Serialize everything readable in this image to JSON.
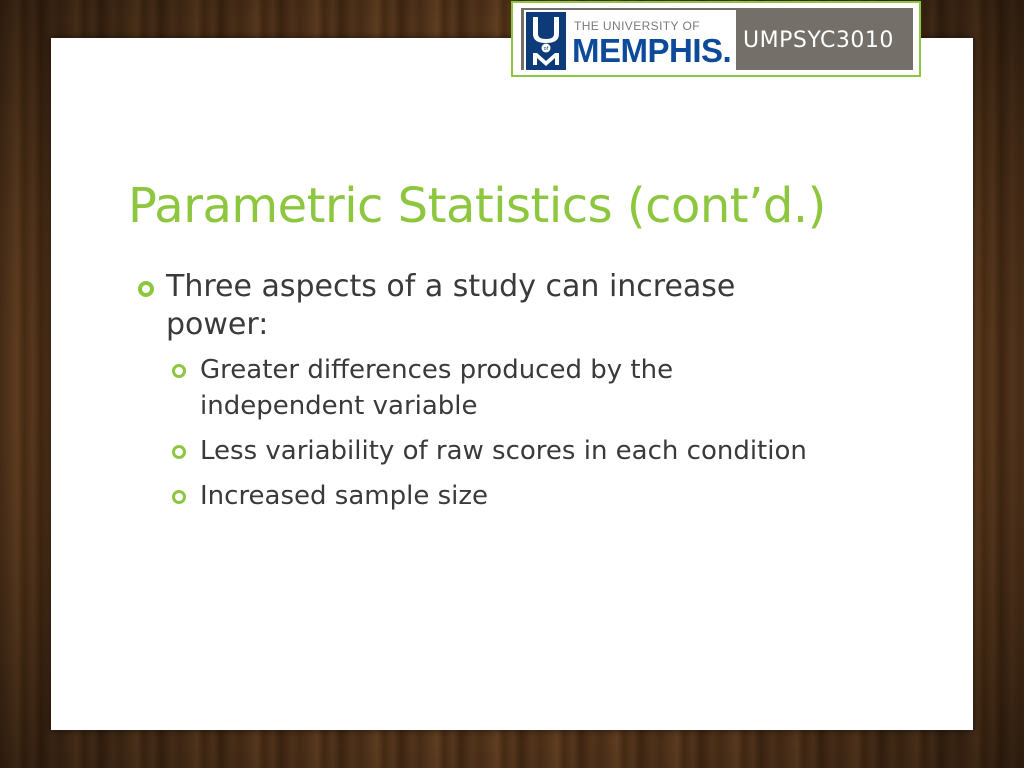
{
  "badge": {
    "logo_small_text": "THE UNIVERSITY OF",
    "logo_big_text": "MEMPHIS.",
    "logo_mark_letters": "U of M",
    "course_code": "UMPSYC3010"
  },
  "slide": {
    "title": "Parametric Statistics (cont’d.)",
    "bullets": [
      {
        "text": "Three aspects of a study can increase power:",
        "sub": [
          "Greater differences produced by the independent variable",
          "Less variability of raw scores in each condition",
          "Increased sample size"
        ]
      }
    ]
  },
  "colors": {
    "accent_green": "#8dc63f",
    "memphis_blue": "#0d4a9a",
    "badge_gray": "#747069",
    "text": "#3a3a3a"
  }
}
